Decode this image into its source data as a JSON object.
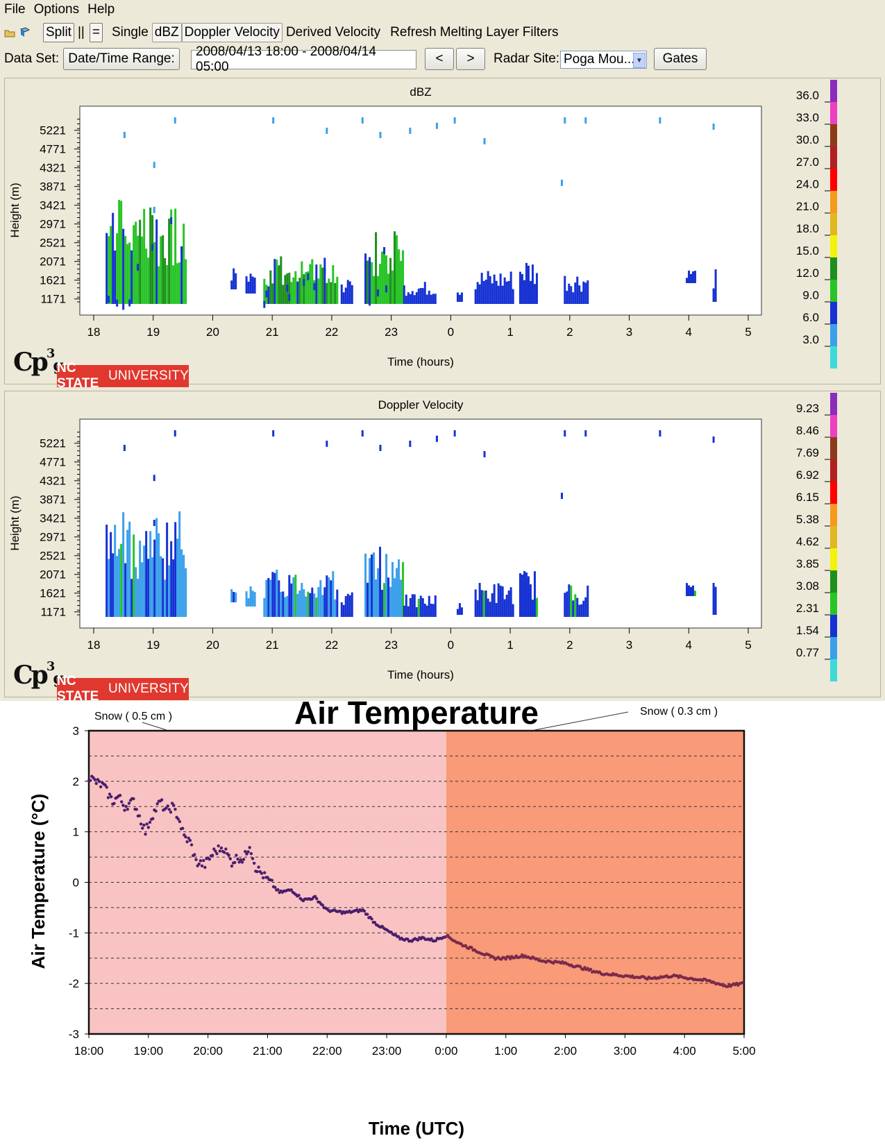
{
  "menu": [
    "File",
    "Options",
    "Help"
  ],
  "toolbar": {
    "icons": [
      "open-folder-icon",
      "book-icon"
    ],
    "split_label": "Split",
    "parallel_label": "||",
    "equal_label": "=",
    "modes": [
      "Single",
      "dBZ",
      "Doppler Velocity",
      "Derived Velocity",
      "Refresh",
      "Melting Layer",
      "Filters"
    ]
  },
  "controls": {
    "dataset_label": "Data Set:",
    "datetime_button": "Date/Time Range:",
    "datetime_value": "2008/04/13 18:00 - 2008/04/14 05:00",
    "prev_button": "<",
    "next_button": ">",
    "radar_site_label": "Radar Site:",
    "radar_site_value": "Poga Mou...",
    "gates_button": "Gates"
  },
  "branding": {
    "logo_text": "Cp",
    "logo_sup": "3",
    "logo_sub": "g",
    "nc_state": "NC STATE",
    "university": "UNIVERSITY"
  },
  "colors": {
    "scale": [
      "#3fd9d9",
      "#3aa0ea",
      "#1632d3",
      "#28c428",
      "#1e8f1e",
      "#f3f30a",
      "#e2b720",
      "#f59a1e",
      "#ff0000",
      "#b02020",
      "#8b3a1a",
      "#ee3fbf",
      "#8d2bbd"
    ]
  },
  "chart_data": [
    {
      "type": "heatmap",
      "title": "dBZ",
      "xlabel": "Time (hours)",
      "ylabel": "Height (m)",
      "x_ticks": [
        "18",
        "19",
        "20",
        "21",
        "22",
        "23",
        "0",
        "1",
        "2",
        "3",
        "4",
        "5"
      ],
      "y_ticks": [
        "5221",
        "4771",
        "4321",
        "3871",
        "3421",
        "2971",
        "2521",
        "2071",
        "1621",
        "1171"
      ],
      "colorbar_labels": [
        "36.0",
        "33.0",
        "30.0",
        "27.0",
        "24.0",
        "21.0",
        "18.0",
        "15.0",
        "12.0",
        "9.0",
        "6.0",
        "3.0"
      ],
      "echo_blocks": [
        {
          "t0": 18.2,
          "t1": 19.55,
          "h0": 1050,
          "h1": 3600,
          "fill": "mixed-green"
        },
        {
          "t0": 20.3,
          "t1": 20.4,
          "h0": 1400,
          "h1": 2000,
          "fill": "blue"
        },
        {
          "t0": 20.55,
          "t1": 20.7,
          "h0": 1300,
          "h1": 1800,
          "fill": "blue"
        },
        {
          "t0": 20.85,
          "t1": 22.1,
          "h0": 1050,
          "h1": 2200,
          "fill": "mixed-green"
        },
        {
          "t0": 22.15,
          "t1": 22.35,
          "h0": 1050,
          "h1": 1700,
          "fill": "blue"
        },
        {
          "t0": 22.55,
          "t1": 23.2,
          "h0": 1050,
          "h1": 2800,
          "fill": "mixed-green"
        },
        {
          "t0": 23.2,
          "t1": 23.75,
          "h0": 1050,
          "h1": 1600,
          "fill": "blue"
        },
        {
          "t0": 24.1,
          "t1": 24.2,
          "h0": 1100,
          "h1": 1500,
          "fill": "blue"
        },
        {
          "t0": 24.4,
          "t1": 25.05,
          "h0": 1050,
          "h1": 1900,
          "fill": "blue"
        },
        {
          "t0": 25.15,
          "t1": 25.45,
          "h0": 1050,
          "h1": 2200,
          "fill": "blue"
        },
        {
          "t0": 25.9,
          "t1": 26.3,
          "h0": 1050,
          "h1": 1850,
          "fill": "blue"
        },
        {
          "t0": 27.95,
          "t1": 28.1,
          "h0": 1550,
          "h1": 1900,
          "fill": "blue"
        },
        {
          "t0": 28.4,
          "t1": 28.46,
          "h0": 1100,
          "h1": 1900,
          "fill": "blue"
        }
      ]
    },
    {
      "type": "heatmap",
      "title": "Doppler Velocity",
      "xlabel": "Time (hours)",
      "ylabel": "Height (m)",
      "x_ticks": [
        "18",
        "19",
        "20",
        "21",
        "22",
        "23",
        "0",
        "1",
        "2",
        "3",
        "4",
        "5"
      ],
      "y_ticks": [
        "5221",
        "4771",
        "4321",
        "3871",
        "3421",
        "2971",
        "2521",
        "2071",
        "1621",
        "1171"
      ],
      "colorbar_labels": [
        "9.23",
        "8.46",
        "7.69",
        "6.92",
        "6.15",
        "5.38",
        "4.62",
        "3.85",
        "3.08",
        "2.31",
        "1.54",
        "0.77"
      ],
      "echo_blocks": [
        {
          "t0": 18.2,
          "t1": 19.55,
          "h0": 1050,
          "h1": 3600,
          "fill": "mixed-lightblue"
        },
        {
          "t0": 20.3,
          "t1": 20.4,
          "h0": 1400,
          "h1": 2000,
          "fill": "lightblue"
        },
        {
          "t0": 20.55,
          "t1": 20.7,
          "h0": 1300,
          "h1": 1800,
          "fill": "lightblue"
        },
        {
          "t0": 20.85,
          "t1": 22.1,
          "h0": 1050,
          "h1": 2200,
          "fill": "mixed-lightblue"
        },
        {
          "t0": 22.15,
          "t1": 22.35,
          "h0": 1050,
          "h1": 1700,
          "fill": "blue"
        },
        {
          "t0": 22.55,
          "t1": 23.2,
          "h0": 1050,
          "h1": 2800,
          "fill": "mixed-lightblue"
        },
        {
          "t0": 23.2,
          "t1": 23.75,
          "h0": 1050,
          "h1": 1600,
          "fill": "blue"
        },
        {
          "t0": 24.1,
          "t1": 24.2,
          "h0": 1100,
          "h1": 1500,
          "fill": "blue"
        },
        {
          "t0": 24.4,
          "t1": 25.05,
          "h0": 1050,
          "h1": 1900,
          "fill": "blue"
        },
        {
          "t0": 25.15,
          "t1": 25.45,
          "h0": 1050,
          "h1": 2200,
          "fill": "blue"
        },
        {
          "t0": 25.9,
          "t1": 26.3,
          "h0": 1050,
          "h1": 1850,
          "fill": "blue"
        },
        {
          "t0": 27.95,
          "t1": 28.1,
          "h0": 1550,
          "h1": 1900,
          "fill": "blue"
        },
        {
          "t0": 28.4,
          "t1": 28.46,
          "h0": 1100,
          "h1": 1900,
          "fill": "blue"
        }
      ]
    },
    {
      "type": "scatter",
      "title": "Air Temperature",
      "xlabel": "Time (UTC)",
      "ylabel": "Air Temperature (°C)",
      "x_ticks": [
        "18:00",
        "19:00",
        "20:00",
        "21:00",
        "22:00",
        "23:00",
        "0:00",
        "1:00",
        "2:00",
        "3:00",
        "4:00",
        "5:00"
      ],
      "y_ticks": [
        "3",
        "2",
        "1",
        "0",
        "-1",
        "-2",
        "-3"
      ],
      "ylim": [
        -3,
        3
      ],
      "shaded_regions": [
        {
          "from": "18:00",
          "to": "0:00",
          "color": "#f9c3c3"
        },
        {
          "from": "0:00",
          "to": "5:00",
          "color": "#f99a78"
        }
      ],
      "annotations": [
        "Snow ( 0.5 cm )",
        "Snow ( 0.3 cm )"
      ],
      "series": [
        {
          "color": "#4a1e6b",
          "hours": [
            0.0,
            0.1,
            0.25,
            0.4,
            0.5,
            0.6,
            0.75,
            0.85,
            0.95,
            1.05,
            1.2,
            1.3,
            1.4,
            1.5,
            1.6,
            1.7,
            1.8,
            1.95,
            2.1,
            2.25,
            2.4,
            2.5,
            2.6,
            2.7,
            2.8,
            3.0,
            3.2,
            3.4,
            3.6,
            3.8,
            4.0,
            4.3,
            4.6,
            4.8,
            5.0,
            5.2,
            5.4,
            5.6,
            5.8,
            6.0,
            6.2,
            6.5,
            6.8,
            7.0,
            7.3,
            7.6,
            8.0,
            8.3,
            8.6,
            9.0,
            9.4,
            9.8,
            10.1,
            10.4,
            10.7,
            11.0
          ],
          "temps": [
            2.1,
            2.0,
            1.9,
            1.6,
            1.7,
            1.5,
            1.6,
            1.3,
            1.0,
            1.3,
            1.6,
            1.4,
            1.5,
            1.3,
            0.9,
            0.8,
            0.4,
            0.35,
            0.6,
            0.7,
            0.4,
            0.5,
            0.45,
            0.75,
            0.3,
            0.05,
            -0.2,
            -0.15,
            -0.35,
            -0.3,
            -0.55,
            -0.6,
            -0.55,
            -0.8,
            -0.95,
            -1.1,
            -1.15,
            -1.1,
            -1.15,
            -1.05,
            -1.2,
            -1.35,
            -1.5,
            -1.5,
            -1.45,
            -1.55,
            -1.6,
            -1.7,
            -1.8,
            -1.85,
            -1.9,
            -1.85,
            -1.9,
            -1.95,
            -2.05,
            -2.0
          ]
        }
      ]
    }
  ]
}
